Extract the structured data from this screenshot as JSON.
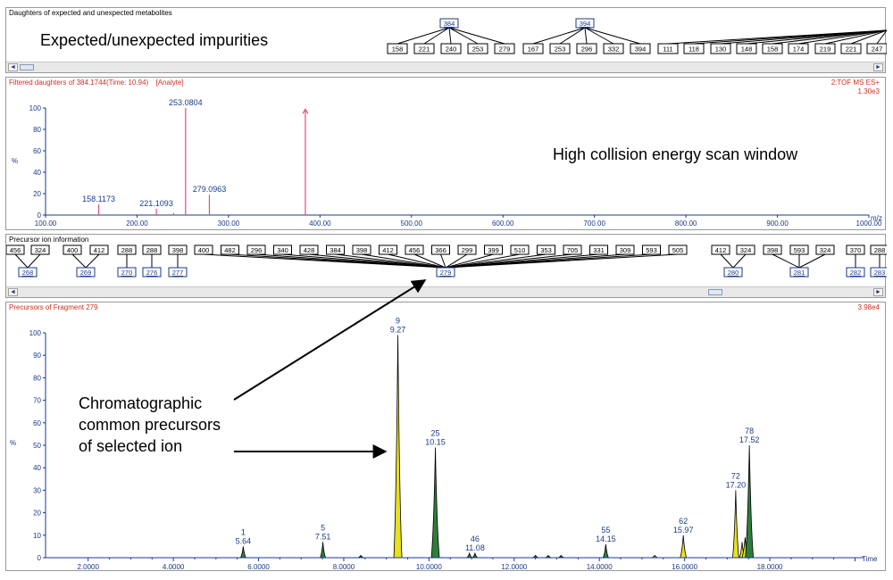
{
  "panel1": {
    "title": "Daughters of expected and unexpected metabolites",
    "overlay": "Expected/unexpected impurities",
    "trees": [
      {
        "parent": "384",
        "children": [
          "158",
          "221",
          "240",
          "253",
          "279"
        ]
      },
      {
        "parent": "394",
        "children": [
          "167",
          "253",
          "296",
          "332",
          "394"
        ]
      },
      {
        "parent": "",
        "children": [
          "111",
          "118",
          "130",
          "148",
          "158",
          "174",
          "219",
          "221",
          "247"
        ]
      }
    ],
    "scroll": {
      "left": "◄",
      "right": "►"
    }
  },
  "panel2": {
    "title": "Filtered daughters of 384.1744(Time: 10.94)",
    "analyte_tag": "[Analyte]",
    "scan_mode": "2:TOF MS ES+",
    "intensity": "1.30e3",
    "overlay": "High collision energy scan window",
    "y_label": "%",
    "x_label": "m/z"
  },
  "panel3": {
    "title": "Precursor ion information",
    "scroll": {
      "left": "◄",
      "right": "►"
    }
  },
  "panel4": {
    "title": "Precursors of Fragment 279",
    "intensity": "3.98e4",
    "y_label": "%",
    "x_label": "Time"
  },
  "annotations": {
    "precursor_lines": [
      "Chromatographic",
      "common precursors",
      "of selected ion"
    ]
  },
  "colors": {
    "red": "#d03020",
    "blue": "#1a3a8a",
    "green": "#2f7d3a",
    "yellow": "#e8e020",
    "spike": "#e05078"
  },
  "chart_data": [
    {
      "type": "bar",
      "title": "Filtered daughters of 384.1744(Time: 10.94)",
      "xlabel": "m/z",
      "ylabel": "%",
      "xlim": [
        100,
        1000
      ],
      "ylim": [
        0,
        100
      ],
      "xticks": [
        "100.00",
        "200.00",
        "300.00",
        "400.00",
        "500.00",
        "600.00",
        "700.00",
        "800.00",
        "900.00",
        "1000.00"
      ],
      "yticks": [
        "0",
        "20",
        "40",
        "60",
        "80",
        "100"
      ],
      "peaks": [
        {
          "x": 158.1173,
          "y": 10,
          "label": "158.1173"
        },
        {
          "x": 221.1093,
          "y": 6,
          "label": "221.1093"
        },
        {
          "x": 240.0,
          "y": 2,
          "label": ""
        },
        {
          "x": 253.0804,
          "y": 100,
          "label": "253.0804"
        },
        {
          "x": 279.0963,
          "y": 19,
          "label": "279.0963"
        },
        {
          "x": 384.0,
          "y": 98,
          "label": ""
        }
      ]
    },
    {
      "type": "area",
      "title": "Precursors of Fragment 279",
      "xlabel": "Time",
      "ylabel": "%",
      "xlim": [
        1,
        20.2
      ],
      "ylim": [
        0,
        100
      ],
      "xticks": [
        "2.0000",
        "4.0000",
        "6.0000",
        "8.0000",
        "10.0000",
        "12.0000",
        "14.0000",
        "16.0000",
        "18.0000"
      ],
      "yticks": [
        "0",
        "10",
        "20",
        "30",
        "40",
        "50",
        "60",
        "70",
        "80",
        "90",
        "100"
      ],
      "peaks": [
        {
          "t": 5.64,
          "y": 5,
          "color": "green",
          "label": [
            "1",
            "5.64"
          ]
        },
        {
          "t": 7.51,
          "y": 7,
          "color": "green",
          "label": [
            "5",
            "7.51"
          ]
        },
        {
          "t": 8.4,
          "y": 1,
          "color": "green",
          "label": []
        },
        {
          "t": 9.27,
          "y": 99,
          "color": "yellow",
          "label": [
            "9",
            "9.27"
          ]
        },
        {
          "t": 10.15,
          "y": 49,
          "color": "green",
          "label": [
            "25",
            "10.15"
          ]
        },
        {
          "t": 10.95,
          "y": 2,
          "color": "green",
          "label": []
        },
        {
          "t": 11.08,
          "y": 2,
          "color": "green",
          "label": [
            "46",
            "11.08"
          ]
        },
        {
          "t": 12.5,
          "y": 1,
          "color": "green",
          "label": []
        },
        {
          "t": 12.8,
          "y": 1,
          "color": "green",
          "label": []
        },
        {
          "t": 13.1,
          "y": 1,
          "color": "green",
          "label": []
        },
        {
          "t": 14.15,
          "y": 6,
          "color": "green",
          "label": [
            "55",
            "14.15"
          ]
        },
        {
          "t": 15.3,
          "y": 1,
          "color": "yellow",
          "label": []
        },
        {
          "t": 15.97,
          "y": 10,
          "color": "yellow",
          "label": [
            "62",
            "15.97"
          ]
        },
        {
          "t": 17.2,
          "y": 30,
          "color": "yellow",
          "label": [
            "72",
            "17.20"
          ]
        },
        {
          "t": 17.35,
          "y": 7,
          "color": "yellow",
          "label": []
        },
        {
          "t": 17.42,
          "y": 9,
          "color": "yellow",
          "label": []
        },
        {
          "t": 17.52,
          "y": 50,
          "color": "green",
          "label": [
            "78",
            "17.52"
          ]
        }
      ]
    }
  ]
}
